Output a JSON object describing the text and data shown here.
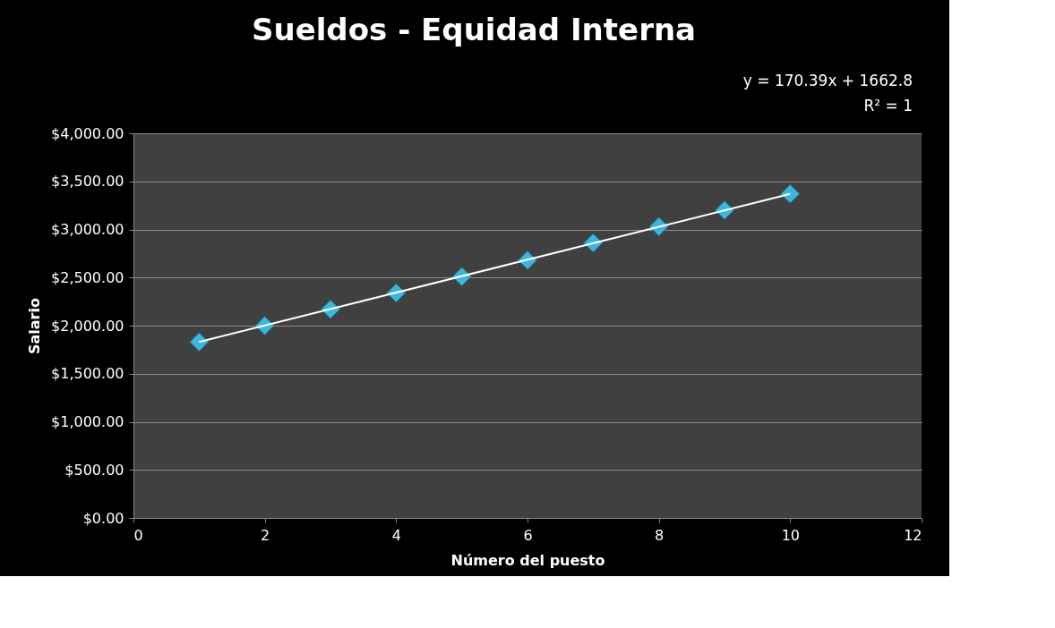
{
  "chart_data": {
    "type": "scatter",
    "title": "Sueldos  - Equidad Interna",
    "xlabel": "Número del puesto",
    "ylabel": "Salario",
    "annotations": [
      "y = 170.39x + 1662.8",
      "R² = 1"
    ],
    "x": [
      1,
      2,
      3,
      4,
      5,
      6,
      7,
      8,
      9,
      10
    ],
    "series": [
      {
        "color": "#3cb6dc",
        "marker": "diamond",
        "values": [
          1830,
          2000,
          2170,
          2340,
          2510,
          2680,
          2860,
          3030,
          3200,
          3370
        ]
      },
      {
        "type": "line",
        "color": "#ffffff",
        "x": [
          1,
          10
        ],
        "values": [
          1830,
          3370
        ],
        "marker": "none",
        "line_style": "solid"
      }
    ],
    "xlim": [
      0,
      12
    ],
    "xticks": [
      0,
      2,
      4,
      6,
      8,
      10,
      12
    ],
    "ylim": [
      0,
      4000
    ],
    "yticks": [
      {
        "value": 0,
        "label": "$0.00"
      },
      {
        "value": 500,
        "label": "$500.00"
      },
      {
        "value": 1000,
        "label": "$1,000.00"
      },
      {
        "value": 1500,
        "label": "$1,500.00"
      },
      {
        "value": 2000,
        "label": "$2,000.00"
      },
      {
        "value": 2500,
        "label": "$2,500.00"
      },
      {
        "value": 3000,
        "label": "$3,000.00"
      },
      {
        "value": 3500,
        "label": "$3,500.00"
      },
      {
        "value": 4000,
        "label": "$4,000.00"
      }
    ],
    "grid": "y",
    "legend": false
  }
}
